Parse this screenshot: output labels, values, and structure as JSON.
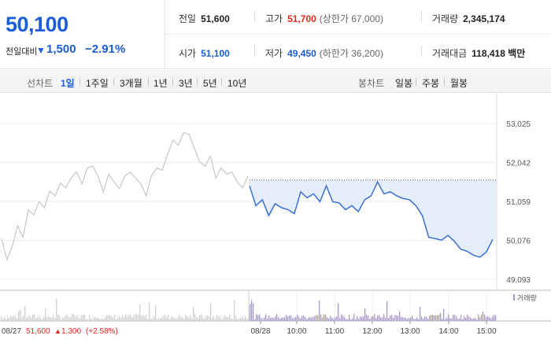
{
  "header": {
    "current_price": "50,100",
    "prev_day_label": "전일대비",
    "change": "1,500",
    "change_pct": "−2.91%",
    "down_arrow": "▼"
  },
  "stats": {
    "prev_close": {
      "label": "전일",
      "value": "51,600"
    },
    "high": {
      "label": "고가",
      "value": "51,700",
      "sub": "(상한가 67,000)"
    },
    "volume": {
      "label": "거래량",
      "value": "2,345,174"
    },
    "open": {
      "label": "시가",
      "value": "51,100"
    },
    "low": {
      "label": "저가",
      "value": "49,450",
      "sub": "(하한가 36,200)"
    },
    "trade_value": {
      "label": "거래대금",
      "value": "118,418 백만"
    }
  },
  "periods": {
    "line_label": "선차트",
    "items": [
      "1일",
      "1주일",
      "3개월",
      "1년",
      "3년",
      "5년",
      "10년"
    ],
    "active": "1일",
    "candle_label": "봉차트",
    "candle_items": [
      "일봉",
      "주봉",
      "월봉"
    ]
  },
  "colors": {
    "accent_blue": "#1a5dd6",
    "up_red": "#e1281f",
    "prev_day_line": "#c6c6c6",
    "today_line": "#3a6fd0",
    "fill": "#e4edfa",
    "volume_bar": "#a596cf"
  },
  "chart_data": {
    "type": "line",
    "y_ticks": [
      "53,025",
      "52,042",
      "51,059",
      "50,076",
      "49,093"
    ],
    "ylim": [
      49093,
      53025
    ],
    "x_ticks": [
      "08/28",
      "10:00",
      "11:00",
      "12:00",
      "13:00",
      "14:00",
      "15:00"
    ],
    "prev_day_footer": {
      "date": "08/27",
      "close": "51,600",
      "arrow": "▲",
      "change": "1,300",
      "pct": "(+2.58%)"
    },
    "volume_legend": "거래량",
    "reference_price": 51600,
    "series": [
      {
        "values": [
          50120,
          49580,
          49920,
          50450,
          50150,
          50850,
          50720,
          51050,
          50900,
          51320,
          51200,
          51520,
          51400,
          51650,
          51800,
          51500,
          51900,
          51950,
          51700,
          51300,
          51750,
          51550,
          51380,
          51700,
          51800,
          51650,
          51500,
          51200,
          51720,
          51900,
          51850,
          52250,
          52600,
          52480,
          52800,
          52750,
          52400,
          52050,
          51950,
          52200,
          51650,
          51900,
          51750,
          51800,
          51550,
          51400,
          51700
        ]
      },
      {
        "x": [
          "09:00",
          "09:10",
          "09:20",
          "09:30",
          "09:40",
          "09:50",
          "10:00",
          "10:10",
          "10:20",
          "10:30",
          "10:40",
          "10:50",
          "11:00",
          "11:10",
          "11:20",
          "11:30",
          "11:40",
          "11:50",
          "12:00",
          "12:10",
          "12:20",
          "12:30",
          "12:40",
          "12:50",
          "13:00",
          "13:10",
          "13:20",
          "13:30",
          "13:40",
          "13:50",
          "14:00",
          "14:10",
          "14:20",
          "14:30",
          "14:40",
          "14:50",
          "15:00",
          "15:10",
          "15:20"
        ],
        "values": [
          51450,
          50950,
          51100,
          50700,
          51000,
          50900,
          50850,
          50750,
          51300,
          51150,
          51250,
          51050,
          51450,
          51050,
          51020,
          50850,
          50950,
          50800,
          51100,
          51200,
          51550,
          51250,
          51300,
          51200,
          51130,
          51100,
          50950,
          50700,
          50150,
          50120,
          50080,
          50200,
          50050,
          49850,
          49800,
          49700,
          49650,
          49780,
          50100
        ]
      }
    ]
  }
}
